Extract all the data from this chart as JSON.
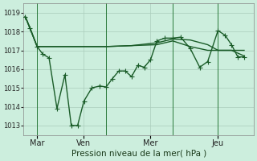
{
  "bg_color": "#cceedd",
  "grid_color": "#aaccbb",
  "line_color": "#1a5c28",
  "marker_style": "+",
  "marker_size": 4,
  "line_width": 1.0,
  "xlabel_text": "Pression niveau de la mer( hPa )",
  "xlabel_fontsize": 7.5,
  "ylim": [
    1012.5,
    1019.5
  ],
  "yticks": [
    1013,
    1014,
    1015,
    1016,
    1017,
    1018,
    1019
  ],
  "day_labels": [
    "Mar",
    "Ven",
    "Mer",
    "Jeu"
  ],
  "day_positions": [
    17,
    75,
    160,
    245
  ],
  "series1_x": [
    2,
    8,
    17,
    24,
    32,
    42,
    52,
    60,
    68,
    76,
    86,
    96,
    104,
    112,
    120,
    128,
    136,
    144,
    152,
    160,
    168,
    178,
    188,
    198,
    210,
    222,
    232,
    245,
    254,
    262,
    270,
    278
  ],
  "series1_y": [
    1018.8,
    1018.2,
    1017.2,
    1016.8,
    1016.6,
    1013.9,
    1015.7,
    1013.0,
    1013.0,
    1014.3,
    1015.0,
    1015.1,
    1015.05,
    1015.5,
    1015.9,
    1015.9,
    1015.6,
    1016.2,
    1016.1,
    1016.5,
    1017.5,
    1017.65,
    1017.65,
    1017.7,
    1017.1,
    1016.1,
    1016.4,
    1018.05,
    1017.8,
    1017.3,
    1016.65,
    1016.65
  ],
  "series2_x": [
    2,
    17,
    32,
    68,
    104,
    136,
    168,
    188,
    210,
    232,
    245,
    262,
    278
  ],
  "series2_y": [
    1018.8,
    1017.2,
    1017.2,
    1017.2,
    1017.2,
    1017.25,
    1017.3,
    1017.5,
    1017.2,
    1017.0,
    1017.0,
    1017.0,
    1017.0
  ],
  "series3_x": [
    2,
    17,
    32,
    68,
    104,
    136,
    168,
    188,
    210,
    232,
    245,
    262,
    278
  ],
  "series3_y": [
    1018.8,
    1017.2,
    1017.2,
    1017.2,
    1017.2,
    1017.25,
    1017.4,
    1017.6,
    1017.55,
    1017.3,
    1017.0,
    1017.0,
    1016.7
  ],
  "vline_x": [
    17,
    104,
    188,
    245
  ],
  "vline_color": "#2a7a3a",
  "xlim": [
    0,
    290
  ]
}
